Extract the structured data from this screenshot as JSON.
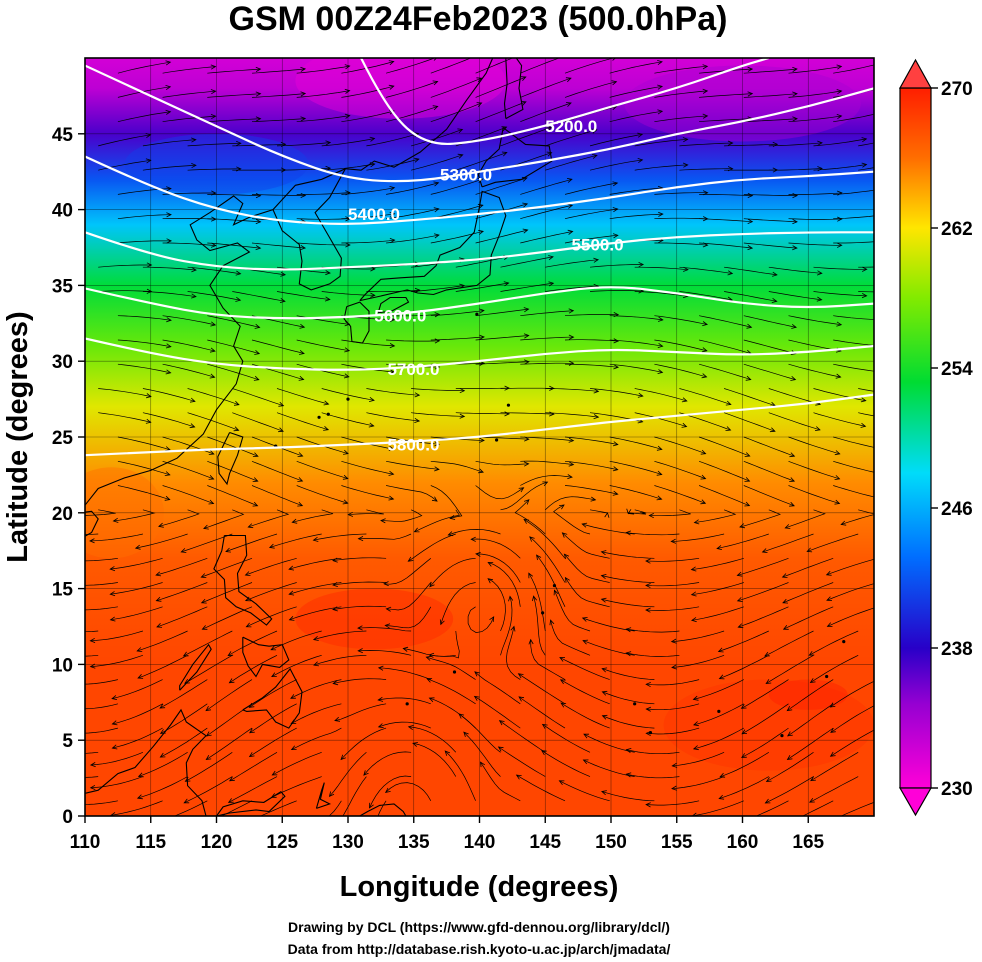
{
  "title": "GSM 00Z24Feb2023 (500.0hPa)",
  "xlabel": "Longitude (degrees)",
  "ylabel": "Latitude  (degrees)",
  "credits": {
    "line1": "Drawing by DCL (https://www.gfd-dennou.org/library/dcl/)",
    "line2": "Data from http://database.rish.kyoto-u.ac.jp/arch/jmadata/"
  },
  "chart_data": {
    "type": "heatmap",
    "variable_fill": "temperature (K)",
    "variable_contour": "geopotential height (m)",
    "xlim": [
      110,
      170
    ],
    "ylim": [
      0,
      50
    ],
    "x_ticks": [
      110,
      115,
      120,
      125,
      130,
      135,
      140,
      145,
      150,
      155,
      160,
      165
    ],
    "y_ticks": [
      0,
      5,
      10,
      15,
      20,
      25,
      30,
      35,
      40,
      45
    ],
    "grid": true,
    "colorbar": {
      "min": 230,
      "max": 270,
      "tick_values": [
        230,
        238,
        246,
        254,
        262,
        270
      ],
      "tick_labels": [
        "230",
        "238",
        "246",
        "254",
        "262",
        "270"
      ],
      "placement": "right"
    },
    "temperature_profile": [
      {
        "lat": 0,
        "value": 268
      },
      {
        "lat": 10,
        "value": 268
      },
      {
        "lat": 17,
        "value": 267
      },
      {
        "lat": 22,
        "value": 265
      },
      {
        "lat": 27,
        "value": 261
      },
      {
        "lat": 31,
        "value": 257
      },
      {
        "lat": 35,
        "value": 253
      },
      {
        "lat": 39,
        "value": 247
      },
      {
        "lat": 42,
        "value": 242
      },
      {
        "lat": 45,
        "value": 237
      },
      {
        "lat": 48,
        "value": 233
      },
      {
        "lat": 50,
        "value": 232
      }
    ],
    "contours": [
      {
        "label": "5200.0",
        "label_lon": 145,
        "label_lat": 45.5,
        "points": [
          [
            131,
            50
          ],
          [
            133,
            46.5
          ],
          [
            136,
            44.2
          ],
          [
            140,
            44.5
          ],
          [
            145,
            45.5
          ],
          [
            150,
            46.8
          ],
          [
            155,
            48
          ],
          [
            160,
            49.5
          ],
          [
            162,
            50
          ]
        ]
      },
      {
        "label": "5300.0",
        "label_lon": 137,
        "label_lat": 42.3,
        "points": [
          [
            110,
            49.5
          ],
          [
            115,
            47.5
          ],
          [
            120,
            45.5
          ],
          [
            125,
            43.5
          ],
          [
            130,
            42
          ],
          [
            135,
            41.8
          ],
          [
            140,
            42.5
          ],
          [
            145,
            43.2
          ],
          [
            150,
            44
          ],
          [
            155,
            45
          ],
          [
            160,
            45.8
          ],
          [
            165,
            46.8
          ],
          [
            170,
            48
          ]
        ]
      },
      {
        "label": "5400.0",
        "label_lon": 130,
        "label_lat": 39.7,
        "points": [
          [
            110,
            43.5
          ],
          [
            115,
            41.5
          ],
          [
            120,
            40
          ],
          [
            125,
            39.2
          ],
          [
            130,
            39
          ],
          [
            135,
            39.3
          ],
          [
            140,
            39.7
          ],
          [
            145,
            40.2
          ],
          [
            150,
            40.8
          ],
          [
            155,
            41.5
          ],
          [
            160,
            42
          ],
          [
            165,
            42.2
          ],
          [
            170,
            42.5
          ]
        ]
      },
      {
        "label": "5500.0",
        "label_lon": 147,
        "label_lat": 37.7,
        "points": [
          [
            110,
            38.5
          ],
          [
            115,
            37
          ],
          [
            120,
            36.2
          ],
          [
            125,
            36
          ],
          [
            130,
            36.2
          ],
          [
            135,
            36.4
          ],
          [
            140,
            36.7
          ],
          [
            145,
            37.2
          ],
          [
            150,
            37.8
          ],
          [
            155,
            38.2
          ],
          [
            160,
            38.4
          ],
          [
            165,
            38.5
          ],
          [
            170,
            38.5
          ]
        ]
      },
      {
        "label": "5600.0",
        "label_lon": 132,
        "label_lat": 33,
        "points": [
          [
            110,
            34.8
          ],
          [
            115,
            33.8
          ],
          [
            120,
            33
          ],
          [
            125,
            32.8
          ],
          [
            130,
            32.9
          ],
          [
            135,
            33.2
          ],
          [
            140,
            33.8
          ],
          [
            145,
            34.5
          ],
          [
            150,
            35
          ],
          [
            155,
            34.5
          ],
          [
            160,
            33.8
          ],
          [
            165,
            33.5
          ],
          [
            170,
            33.8
          ]
        ]
      },
      {
        "label": "5700.0",
        "label_lon": 133,
        "label_lat": 29.5,
        "points": [
          [
            110,
            31.5
          ],
          [
            115,
            30.5
          ],
          [
            120,
            29.8
          ],
          [
            125,
            29.5
          ],
          [
            130,
            29.4
          ],
          [
            135,
            29.6
          ],
          [
            140,
            30
          ],
          [
            145,
            30.5
          ],
          [
            150,
            30.8
          ],
          [
            155,
            30.6
          ],
          [
            160,
            30.4
          ],
          [
            165,
            30.6
          ],
          [
            170,
            31
          ]
        ]
      },
      {
        "label": "5800.0",
        "label_lon": 133,
        "label_lat": 24.5,
        "points": [
          [
            110,
            23.8
          ],
          [
            115,
            24
          ],
          [
            120,
            24.2
          ],
          [
            125,
            24.3
          ],
          [
            130,
            24.5
          ],
          [
            135,
            24.7
          ],
          [
            140,
            25
          ],
          [
            145,
            25.5
          ],
          [
            150,
            26
          ],
          [
            155,
            26.4
          ],
          [
            160,
            26.8
          ],
          [
            165,
            27.2
          ],
          [
            170,
            27.8
          ]
        ]
      }
    ]
  }
}
